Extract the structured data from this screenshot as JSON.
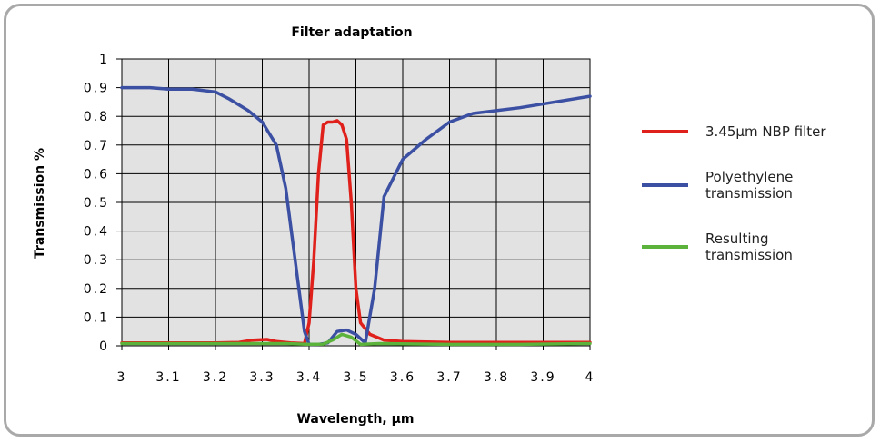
{
  "chart_data": {
    "type": "line",
    "title": "Filter adaptation",
    "xlabel": "Wavelength, μm",
    "ylabel": "Transmission %",
    "xlim": [
      3,
      4
    ],
    "ylim": [
      0,
      1
    ],
    "x_ticks": [
      "3",
      "3.1",
      "3.2",
      "3.3",
      "3.4",
      "3.5",
      "3.6",
      "3.7",
      "3.8",
      "3.9",
      "4"
    ],
    "y_ticks": [
      "0",
      "0.1",
      "0.2",
      "0.3",
      "0.4",
      "0.5",
      "0.6",
      "0.7",
      "0.8",
      "0.9",
      "1"
    ],
    "grid": true,
    "legend_position": "right",
    "series": [
      {
        "name": "3.45μm NBP filter",
        "color": "#e0201b",
        "legend_lines": [
          "3.45μm NBP filter"
        ],
        "points": [
          [
            3.0,
            0.01
          ],
          [
            3.1,
            0.01
          ],
          [
            3.2,
            0.01
          ],
          [
            3.25,
            0.012
          ],
          [
            3.28,
            0.02
          ],
          [
            3.31,
            0.022
          ],
          [
            3.33,
            0.015
          ],
          [
            3.36,
            0.01
          ],
          [
            3.39,
            0.008
          ],
          [
            3.4,
            0.08
          ],
          [
            3.41,
            0.3
          ],
          [
            3.42,
            0.6
          ],
          [
            3.43,
            0.77
          ],
          [
            3.44,
            0.78
          ],
          [
            3.45,
            0.78
          ],
          [
            3.46,
            0.785
          ],
          [
            3.47,
            0.77
          ],
          [
            3.48,
            0.72
          ],
          [
            3.49,
            0.5
          ],
          [
            3.5,
            0.2
          ],
          [
            3.51,
            0.08
          ],
          [
            3.53,
            0.04
          ],
          [
            3.56,
            0.02
          ],
          [
            3.6,
            0.015
          ],
          [
            3.7,
            0.012
          ],
          [
            3.8,
            0.012
          ],
          [
            3.9,
            0.012
          ],
          [
            4.0,
            0.012
          ]
        ]
      },
      {
        "name": "Polyethylene transmission",
        "color": "#3b4fa3",
        "legend_lines": [
          "Polyethylene",
          "transmission"
        ],
        "points": [
          [
            3.0,
            0.9
          ],
          [
            3.06,
            0.9
          ],
          [
            3.1,
            0.895
          ],
          [
            3.15,
            0.895
          ],
          [
            3.2,
            0.885
          ],
          [
            3.23,
            0.86
          ],
          [
            3.27,
            0.82
          ],
          [
            3.3,
            0.78
          ],
          [
            3.33,
            0.7
          ],
          [
            3.35,
            0.55
          ],
          [
            3.37,
            0.3
          ],
          [
            3.39,
            0.05
          ],
          [
            3.4,
            0.005
          ],
          [
            3.42,
            0.005
          ],
          [
            3.44,
            0.01
          ],
          [
            3.46,
            0.05
          ],
          [
            3.48,
            0.055
          ],
          [
            3.5,
            0.04
          ],
          [
            3.52,
            0.01
          ],
          [
            3.54,
            0.2
          ],
          [
            3.56,
            0.52
          ],
          [
            3.6,
            0.65
          ],
          [
            3.65,
            0.72
          ],
          [
            3.7,
            0.78
          ],
          [
            3.75,
            0.81
          ],
          [
            3.85,
            0.83
          ],
          [
            4.0,
            0.87
          ]
        ]
      },
      {
        "name": "Resulting transmission",
        "color": "#5cb33b",
        "legend_lines": [
          "Resulting",
          "transmission"
        ],
        "points": [
          [
            3.0,
            0.008
          ],
          [
            3.2,
            0.008
          ],
          [
            3.35,
            0.008
          ],
          [
            3.4,
            0.005
          ],
          [
            3.43,
            0.006
          ],
          [
            3.45,
            0.02
          ],
          [
            3.47,
            0.04
          ],
          [
            3.49,
            0.03
          ],
          [
            3.51,
            0.005
          ],
          [
            3.55,
            0.008
          ],
          [
            3.7,
            0.005
          ],
          [
            3.85,
            0.005
          ],
          [
            4.0,
            0.008
          ]
        ]
      }
    ]
  }
}
